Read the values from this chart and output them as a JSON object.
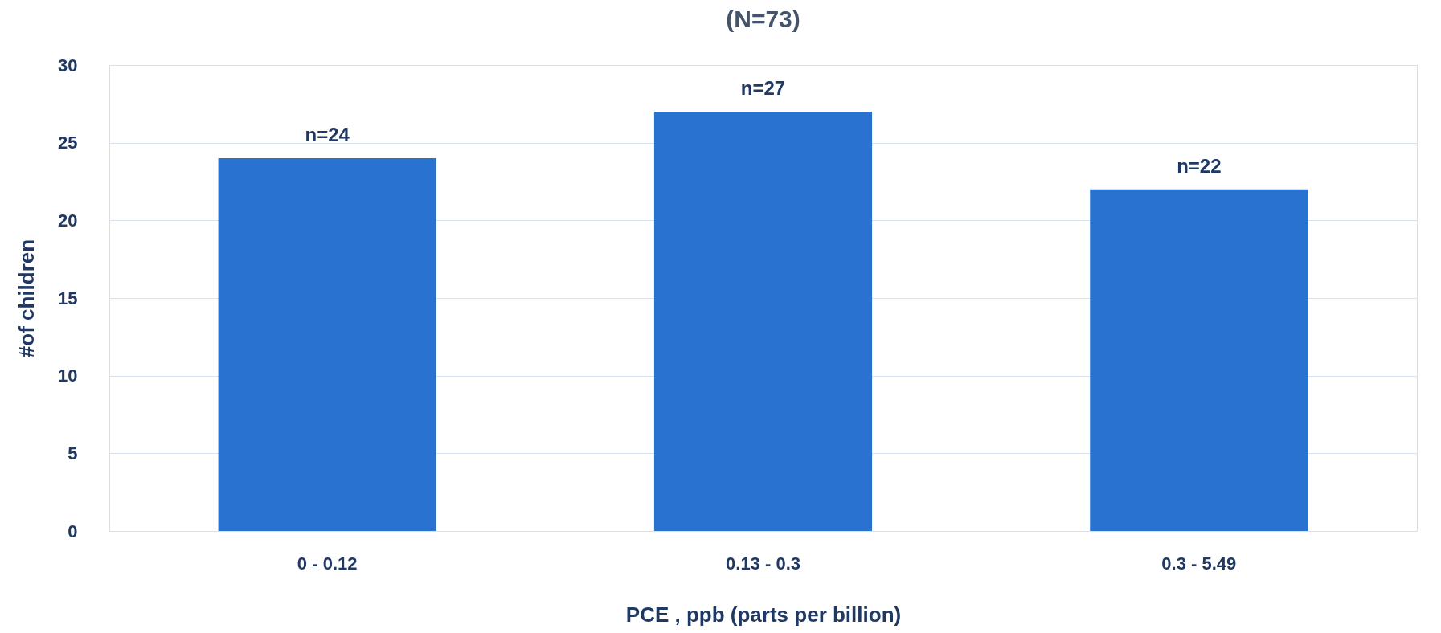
{
  "chart_data": {
    "type": "bar",
    "title": "(N=73)",
    "xlabel": "PCE , ppb (parts per billion)",
    "ylabel": "#of children",
    "categories": [
      "0 - 0.12",
      "0.13 - 0.3",
      "0.3 - 5.49"
    ],
    "series": [
      {
        "color": "#2a72cf",
        "values": [
          24,
          27,
          22
        ],
        "value_labels": [
          "n=24",
          "n=27",
          "n=22"
        ]
      }
    ],
    "ylim": [
      0,
      30
    ],
    "yticks": [
      0,
      5,
      10,
      15,
      20,
      25,
      30
    ],
    "grid": "y"
  }
}
